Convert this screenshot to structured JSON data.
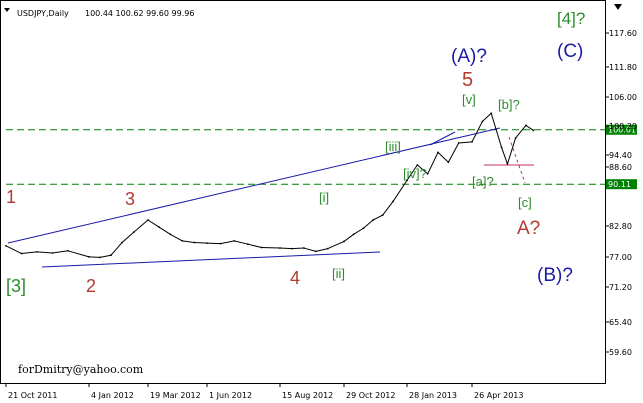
{
  "chart_data": {
    "type": "line",
    "title": "USDJPY,Daily",
    "ohlc_readout": "100.44 100.62 99.60 99.96",
    "watermark": "forDmitry@yahoo.com",
    "ylim": [
      56.0,
      122.0
    ],
    "y_ticks": [
      "117.60",
      "111.80",
      "106.00",
      "100.20",
      "94.40",
      "88.60",
      "82.80",
      "77.00",
      "71.20",
      "65.40",
      "59.60"
    ],
    "x_ticks": [
      "21 Oct 2011",
      "4 Jan 2012",
      "19 Mar 2012",
      "1 Jun 2012",
      "15 Aug 2012",
      "29 Oct 2012",
      "28 Jan 2013",
      "26 Apr 2013"
    ],
    "grid": false,
    "series": [
      {
        "x": [
          "21 Oct 2011",
          "4 Nov 2011",
          "18 Nov 2011",
          "2 Dec 2011",
          "16 Dec 2011",
          "4 Jan 2012",
          "18 Jan 2012",
          "1 Feb 2012",
          "15 Feb 2012",
          "1 Mar 2012",
          "19 Mar 2012",
          "2 Apr 2012",
          "16 Apr 2012",
          "1 May 2012",
          "16 May 2012",
          "1 Jun 2012",
          "15 Jun 2012",
          "29 Jun 2012",
          "13 Jul 2012",
          "27 Jul 2012",
          "15 Aug 2012",
          "29 Aug 2012",
          "12 Sep 2012",
          "26 Sep 2012",
          "10 Oct 2012",
          "29 Oct 2012",
          "12 Nov 2012",
          "26 Nov 2012",
          "10 Dec 2012",
          "24 Dec 2012",
          "8 Jan 2013",
          "28 Jan 2013",
          "11 Feb 2013",
          "25 Feb 2013",
          "11 Mar 2013",
          "25 Mar 2013",
          "8 Apr 2013",
          "26 Apr 2013",
          "10 May 2013",
          "22 May 2013",
          "5 Jun 2013",
          "13 Jun 2013",
          "24 Jun 2013",
          "8 Jul 2013",
          "18 Jul 2013"
        ],
        "values": [
          78.9,
          77.5,
          77.8,
          77.6,
          78.0,
          76.9,
          76.8,
          77.2,
          79.5,
          81.4,
          83.6,
          82.3,
          81.0,
          79.8,
          79.5,
          79.4,
          79.3,
          79.8,
          79.2,
          78.6,
          78.5,
          78.4,
          78.5,
          77.9,
          78.4,
          79.7,
          81.0,
          82.1,
          83.6,
          84.5,
          87.0,
          90.8,
          93.6,
          92.0,
          95.9,
          94.1,
          97.6,
          97.8,
          101.5,
          103.0,
          96.8,
          93.8,
          98.5,
          100.8,
          99.9
        ]
      }
    ],
    "h_lines": [
      {
        "value": 100.01,
        "label": "100.01",
        "color": "#008000"
      },
      {
        "value": 90.11,
        "label": "90.11",
        "color": "#008000"
      }
    ],
    "wave_labels": [
      {
        "text": "1",
        "color": "#b03a2e"
      },
      {
        "text": "2",
        "color": "#b03a2e"
      },
      {
        "text": "3",
        "color": "#b03a2e"
      },
      {
        "text": "4",
        "color": "#b03a2e"
      },
      {
        "text": "5",
        "color": "#b03a2e"
      },
      {
        "text": "[3]",
        "color": "#2e8b2e"
      },
      {
        "text": "[i]",
        "color": "#2e8b2e"
      },
      {
        "text": "[ii]",
        "color": "#2e8b2e"
      },
      {
        "text": "[iii]",
        "color": "#2e8b2e"
      },
      {
        "text": "[iv]?",
        "color": "#2e8b2e"
      },
      {
        "text": "[v]",
        "color": "#2e8b2e"
      },
      {
        "text": "[a]?",
        "color": "#2e8b2e"
      },
      {
        "text": "[b]?",
        "color": "#2e8b2e"
      },
      {
        "text": "[c]",
        "color": "#2e8b2e"
      },
      {
        "text": "[4]?",
        "color": "#2e8b2e"
      },
      {
        "text": "(A)?",
        "color": "#1a1aa8"
      },
      {
        "text": "(B)?",
        "color": "#1a1aa8"
      },
      {
        "text": "(C)",
        "color": "#1a1aa8"
      },
      {
        "text": "A?",
        "color": "#b03a2e"
      }
    ],
    "colors": {
      "price_line": "#000000",
      "trend_line": "#1a1aa8",
      "level_line": "#008000",
      "projection": "#c0306a",
      "axis": "#000000",
      "background": "#ffffff"
    }
  }
}
